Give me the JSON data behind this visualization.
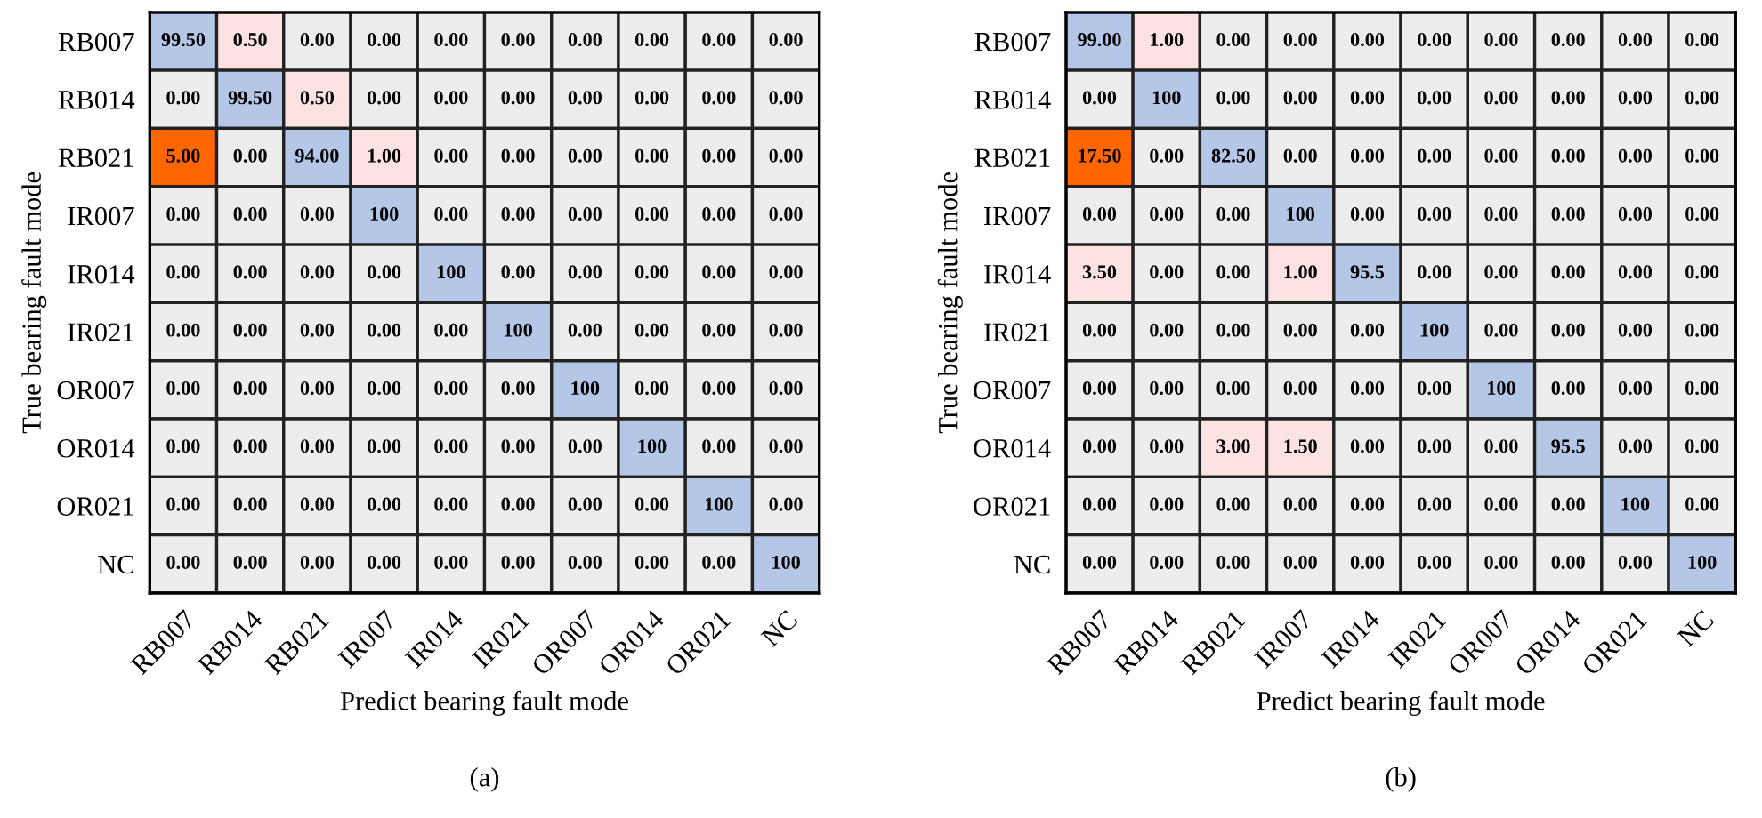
{
  "chart_data": [
    {
      "type": "heatmap",
      "xlabel": "Predict bearing fault mode",
      "ylabel": "True bearing fault mode",
      "annotations": [
        "(a)"
      ],
      "categories": [
        "RB007",
        "RB014",
        "RB021",
        "IR007",
        "IR014",
        "IR021",
        "OR007",
        "OR014",
        "OR021",
        "NC"
      ],
      "y_categories": [
        "RB007",
        "RB014",
        "RB021",
        "IR007",
        "IR014",
        "IR021",
        "OR007",
        "OR014",
        "OR021",
        "NC"
      ],
      "cells": [
        [
          99.5,
          0.5,
          0,
          0,
          0,
          0,
          0,
          0,
          0,
          0
        ],
        [
          0,
          99.5,
          0.5,
          0,
          0,
          0,
          0,
          0,
          0,
          0
        ],
        [
          5,
          0,
          94,
          1,
          0,
          0,
          0,
          0,
          0,
          0
        ],
        [
          0,
          0,
          0,
          100,
          0,
          0,
          0,
          0,
          0,
          0
        ],
        [
          0,
          0,
          0,
          0,
          100,
          0,
          0,
          0,
          0,
          0
        ],
        [
          0,
          0,
          0,
          0,
          0,
          100,
          0,
          0,
          0,
          0
        ],
        [
          0,
          0,
          0,
          0,
          0,
          0,
          100,
          0,
          0,
          0
        ],
        [
          0,
          0,
          0,
          0,
          0,
          0,
          0,
          100,
          0,
          0
        ],
        [
          0,
          0,
          0,
          0,
          0,
          0,
          0,
          0,
          100,
          0
        ],
        [
          0,
          0,
          0,
          0,
          0,
          0,
          0,
          0,
          0,
          100
        ]
      ],
      "cell_labels": [
        [
          "99.50",
          "0.50",
          "0.00",
          "0.00",
          "0.00",
          "0.00",
          "0.00",
          "0.00",
          "0.00",
          "0.00"
        ],
        [
          "0.00",
          "99.50",
          "0.50",
          "0.00",
          "0.00",
          "0.00",
          "0.00",
          "0.00",
          "0.00",
          "0.00"
        ],
        [
          "5.00",
          "0.00",
          "94.00",
          "1.00",
          "0.00",
          "0.00",
          "0.00",
          "0.00",
          "0.00",
          "0.00"
        ],
        [
          "0.00",
          "0.00",
          "0.00",
          "100",
          "0.00",
          "0.00",
          "0.00",
          "0.00",
          "0.00",
          "0.00"
        ],
        [
          "0.00",
          "0.00",
          "0.00",
          "0.00",
          "100",
          "0.00",
          "0.00",
          "0.00",
          "0.00",
          "0.00"
        ],
        [
          "0.00",
          "0.00",
          "0.00",
          "0.00",
          "0.00",
          "100",
          "0.00",
          "0.00",
          "0.00",
          "0.00"
        ],
        [
          "0.00",
          "0.00",
          "0.00",
          "0.00",
          "0.00",
          "0.00",
          "100",
          "0.00",
          "0.00",
          "0.00"
        ],
        [
          "0.00",
          "0.00",
          "0.00",
          "0.00",
          "0.00",
          "0.00",
          "0.00",
          "100",
          "0.00",
          "0.00"
        ],
        [
          "0.00",
          "0.00",
          "0.00",
          "0.00",
          "0.00",
          "0.00",
          "0.00",
          "0.00",
          "100",
          "0.00"
        ],
        [
          "0.00",
          "0.00",
          "0.00",
          "0.00",
          "0.00",
          "0.00",
          "0.00",
          "0.00",
          "0.00",
          "100"
        ]
      ]
    },
    {
      "type": "heatmap",
      "xlabel": "Predict bearing fault mode",
      "ylabel": "True bearing fault mode",
      "annotations": [
        "(b)"
      ],
      "categories": [
        "RB007",
        "RB014",
        "RB021",
        "IR007",
        "IR014",
        "IR021",
        "OR007",
        "OR014",
        "OR021",
        "NC"
      ],
      "y_categories": [
        "RB007",
        "RB014",
        "RB021",
        "IR007",
        "IR014",
        "IR021",
        "OR007",
        "OR014",
        "OR021",
        "NC"
      ],
      "cells": [
        [
          99,
          1,
          0,
          0,
          0,
          0,
          0,
          0,
          0,
          0
        ],
        [
          0,
          100,
          0,
          0,
          0,
          0,
          0,
          0,
          0,
          0
        ],
        [
          17.5,
          0,
          82.5,
          0,
          0,
          0,
          0,
          0,
          0,
          0
        ],
        [
          0,
          0,
          0,
          100,
          0,
          0,
          0,
          0,
          0,
          0
        ],
        [
          3.5,
          0,
          0,
          1,
          95.5,
          0,
          0,
          0,
          0,
          0
        ],
        [
          0,
          0,
          0,
          0,
          0,
          100,
          0,
          0,
          0,
          0
        ],
        [
          0,
          0,
          0,
          0,
          0,
          0,
          100,
          0,
          0,
          0
        ],
        [
          0,
          0,
          3,
          1.5,
          0,
          0,
          0,
          95.5,
          0,
          0
        ],
        [
          0,
          0,
          0,
          0,
          0,
          0,
          0,
          0,
          100,
          0
        ],
        [
          0,
          0,
          0,
          0,
          0,
          0,
          0,
          0,
          0,
          100
        ]
      ],
      "cell_labels": [
        [
          "99.00",
          "1.00",
          "0.00",
          "0.00",
          "0.00",
          "0.00",
          "0.00",
          "0.00",
          "0.00",
          "0.00"
        ],
        [
          "0.00",
          "100",
          "0.00",
          "0.00",
          "0.00",
          "0.00",
          "0.00",
          "0.00",
          "0.00",
          "0.00"
        ],
        [
          "17.50",
          "0.00",
          "82.50",
          "0.00",
          "0.00",
          "0.00",
          "0.00",
          "0.00",
          "0.00",
          "0.00"
        ],
        [
          "0.00",
          "0.00",
          "0.00",
          "100",
          "0.00",
          "0.00",
          "0.00",
          "0.00",
          "0.00",
          "0.00"
        ],
        [
          "3.50",
          "0.00",
          "0.00",
          "1.00",
          "95.5",
          "0.00",
          "0.00",
          "0.00",
          "0.00",
          "0.00"
        ],
        [
          "0.00",
          "0.00",
          "0.00",
          "0.00",
          "0.00",
          "100",
          "0.00",
          "0.00",
          "0.00",
          "0.00"
        ],
        [
          "0.00",
          "0.00",
          "0.00",
          "0.00",
          "0.00",
          "0.00",
          "100",
          "0.00",
          "0.00",
          "0.00"
        ],
        [
          "0.00",
          "0.00",
          "3.00",
          "1.50",
          "0.00",
          "0.00",
          "0.00",
          "95.5",
          "0.00",
          "0.00"
        ],
        [
          "0.00",
          "0.00",
          "0.00",
          "0.00",
          "0.00",
          "0.00",
          "0.00",
          "0.00",
          "100",
          "0.00"
        ],
        [
          "0.00",
          "0.00",
          "0.00",
          "0.00",
          "0.00",
          "0.00",
          "0.00",
          "0.00",
          "0.00",
          "100"
        ]
      ]
    }
  ]
}
